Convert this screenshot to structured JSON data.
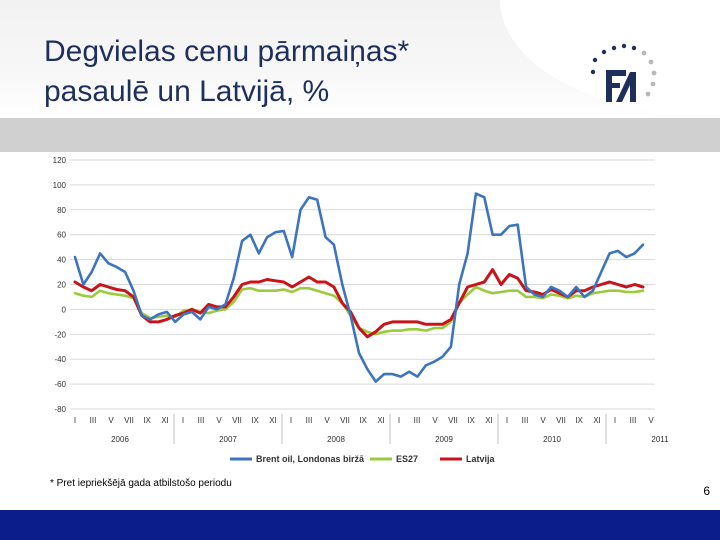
{
  "slide": {
    "title_line1": "Degvielas cenu pārmaiņas*",
    "title_line2": "pasaulē un Latvijā, %",
    "footnote": "* Pret iepriekšējā gada atbilstošo periodu",
    "page_number": "6"
  },
  "logo": {
    "icon": "fm-logo-icon",
    "text": "FM"
  },
  "colors": {
    "brent": "#3d74c0",
    "es27": "#9acb3c",
    "latvija": "#c81418",
    "footer": "#0b1d8a",
    "title": "#1f2f5c"
  },
  "chart_data": {
    "type": "line",
    "title": "",
    "ylim": [
      -80,
      120
    ],
    "yticks": [
      120,
      100,
      80,
      60,
      40,
      20,
      0,
      -20,
      -40,
      -60,
      -80
    ],
    "month_labels": [
      "I",
      "III",
      "V",
      "VII",
      "IX",
      "XI",
      "I",
      "III",
      "V",
      "VII",
      "IX",
      "XI",
      "I",
      "III",
      "V",
      "VII",
      "IX",
      "XI",
      "I",
      "III",
      "V",
      "VII",
      "IX",
      "XI",
      "I",
      "III",
      "V",
      "VII",
      "IX",
      "XI",
      "I",
      "III",
      "V"
    ],
    "year_labels": [
      "2006",
      "2007",
      "2008",
      "2009",
      "2010",
      "2011"
    ],
    "grid": true,
    "legend": "bottom",
    "series": [
      {
        "name": "Brent oil, Londonas biržā",
        "key": "brent",
        "values": [
          42,
          20,
          30,
          45,
          37,
          34,
          30,
          15,
          -5,
          -8,
          -4,
          -2,
          -10,
          -4,
          -2,
          -8,
          2,
          0,
          4,
          25,
          55,
          60,
          45,
          58,
          62,
          63,
          42,
          80,
          90,
          88,
          58,
          52,
          20,
          -5,
          -35,
          -48,
          -58,
          -52,
          -52,
          -54,
          -50,
          -54,
          -45,
          -42,
          -38,
          -30,
          20,
          45,
          93,
          90,
          60,
          60,
          67,
          68,
          18,
          12,
          10,
          18,
          15,
          10,
          18,
          10,
          15,
          30,
          45,
          47,
          42,
          45,
          52
        ]
      },
      {
        "name": "ES27",
        "key": "es27",
        "values": [
          13,
          11,
          10,
          15,
          13,
          12,
          11,
          9,
          -3,
          -7,
          -6,
          -5,
          -6,
          -1,
          0,
          -2,
          -3,
          -1,
          0,
          6,
          16,
          17,
          15,
          15,
          15,
          16,
          14,
          17,
          17,
          15,
          13,
          11,
          5,
          -5,
          -15,
          -18,
          -20,
          -18,
          -17,
          -17,
          -16,
          -16,
          -17,
          -15,
          -15,
          -10,
          5,
          12,
          18,
          15,
          13,
          14,
          15,
          15,
          10,
          10,
          9,
          12,
          11,
          9,
          11,
          10,
          13,
          14,
          15,
          15,
          14,
          14,
          15
        ]
      },
      {
        "name": "Latvija",
        "key": "latvija",
        "values": [
          22,
          18,
          15,
          20,
          18,
          16,
          15,
          10,
          -5,
          -10,
          -10,
          -8,
          -5,
          -3,
          0,
          -3,
          4,
          2,
          2,
          10,
          20,
          22,
          22,
          24,
          23,
          22,
          18,
          22,
          26,
          22,
          22,
          18,
          5,
          -2,
          -15,
          -22,
          -18,
          -12,
          -10,
          -10,
          -10,
          -10,
          -12,
          -12,
          -12,
          -8,
          5,
          18,
          20,
          22,
          32,
          20,
          28,
          25,
          15,
          14,
          12,
          16,
          13,
          10,
          15,
          15,
          18,
          20,
          22,
          20,
          18,
          20,
          18
        ]
      }
    ]
  }
}
